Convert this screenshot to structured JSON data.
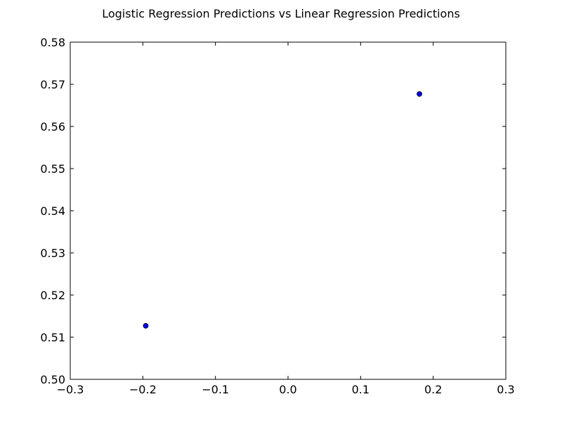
{
  "chart_data": {
    "type": "scatter",
    "title": "Logistic Regression Predictions vs Linear Regression Predictions",
    "xlabel": "",
    "ylabel": "",
    "xlim": [
      -0.3,
      0.3
    ],
    "ylim": [
      0.5,
      0.58
    ],
    "xticks": [
      -0.3,
      -0.2,
      -0.1,
      0.0,
      0.1,
      0.2,
      0.3
    ],
    "xtick_labels": [
      "−0.3",
      "−0.2",
      "−0.1",
      "0.0",
      "0.1",
      "0.2",
      "0.3"
    ],
    "yticks": [
      0.5,
      0.51,
      0.52,
      0.53,
      0.54,
      0.55,
      0.56,
      0.57,
      0.58
    ],
    "ytick_labels": [
      "0.50",
      "0.51",
      "0.52",
      "0.53",
      "0.54",
      "0.55",
      "0.56",
      "0.57",
      "0.58"
    ],
    "grid": false,
    "points": [
      {
        "x": -0.196,
        "y": 0.5127
      },
      {
        "x": 0.181,
        "y": 0.5677
      }
    ],
    "marker_color": "#0000ff",
    "marker_edge_color": "#000000"
  }
}
